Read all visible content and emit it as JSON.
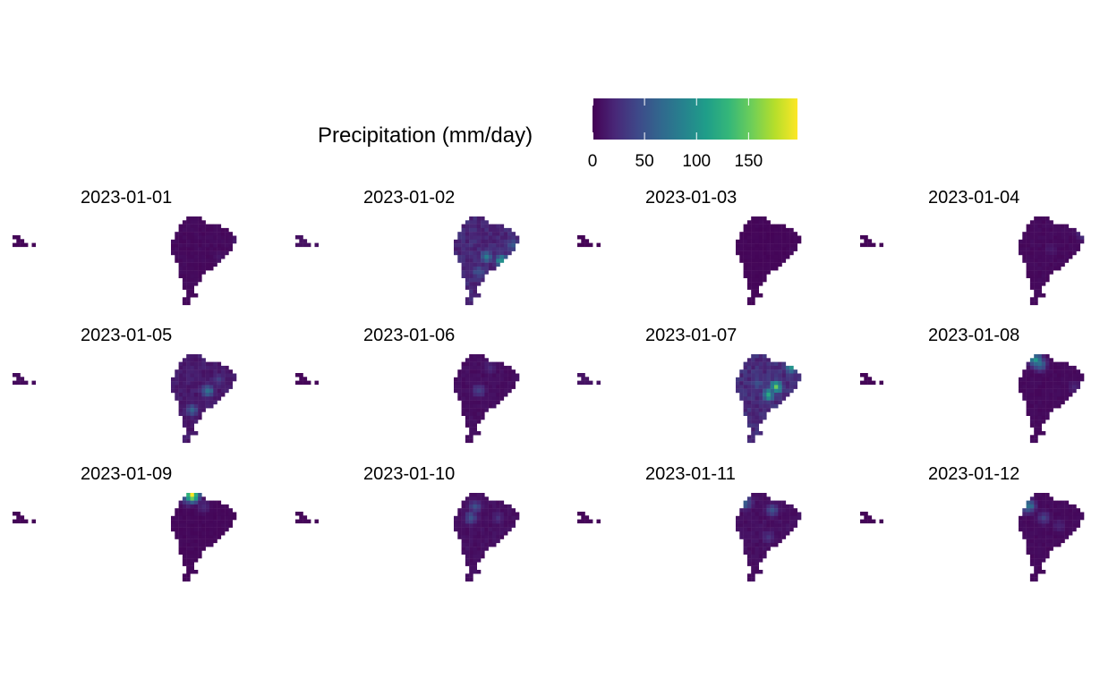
{
  "chart_data": {
    "type": "heatmap",
    "legend": {
      "title": "Precipitation (mm/day)",
      "ticks": [
        0,
        50,
        100,
        150
      ],
      "range": [
        0,
        197
      ],
      "palette": [
        "#440154",
        "#482878",
        "#3e4989",
        "#31688e",
        "#26828e",
        "#1f9e89",
        "#35b779",
        "#6ece58",
        "#b5de2b",
        "#fde725"
      ],
      "position": "top"
    },
    "facets": [
      {
        "label": "2023-01-01",
        "base": 5,
        "hotspots": [
          {
            "x": 17,
            "y": 6,
            "value": 18
          },
          {
            "x": 12,
            "y": 10,
            "value": 12
          }
        ]
      },
      {
        "label": "2023-01-02",
        "base": 22,
        "hotspots": [
          {
            "x": 8,
            "y": 10,
            "value": 80
          },
          {
            "x": 12,
            "y": 11,
            "value": 110
          },
          {
            "x": 15,
            "y": 7,
            "value": 60
          },
          {
            "x": 6,
            "y": 14,
            "value": 55
          }
        ]
      },
      {
        "label": "2023-01-03",
        "base": 3,
        "hotspots": [
          {
            "x": 14,
            "y": 8,
            "value": 6
          }
        ]
      },
      {
        "label": "2023-01-04",
        "base": 5,
        "hotspots": [
          {
            "x": 16,
            "y": 4,
            "value": 30
          },
          {
            "x": 8,
            "y": 8,
            "value": 15
          }
        ]
      },
      {
        "label": "2023-01-05",
        "base": 14,
        "hotspots": [
          {
            "x": 9,
            "y": 9,
            "value": 75
          },
          {
            "x": 5,
            "y": 14,
            "value": 55
          },
          {
            "x": 12,
            "y": 6,
            "value": 35
          }
        ]
      },
      {
        "label": "2023-01-06",
        "base": 7,
        "hotspots": [
          {
            "x": 6,
            "y": 9,
            "value": 40
          },
          {
            "x": 9,
            "y": 3,
            "value": 25
          }
        ]
      },
      {
        "label": "2023-01-07",
        "base": 25,
        "hotspots": [
          {
            "x": 10,
            "y": 8,
            "value": 135
          },
          {
            "x": 8,
            "y": 10,
            "value": 110
          },
          {
            "x": 14,
            "y": 3,
            "value": 90
          },
          {
            "x": 5,
            "y": 7,
            "value": 55
          }
        ]
      },
      {
        "label": "2023-01-08",
        "base": 5,
        "hotspots": [
          {
            "x": 4,
            "y": 1,
            "value": 95
          },
          {
            "x": 5,
            "y": 2,
            "value": 70
          },
          {
            "x": 14,
            "y": 8,
            "value": 20
          }
        ]
      },
      {
        "label": "2023-01-09",
        "base": 4,
        "hotspots": [
          {
            "x": 5,
            "y": 0,
            "value": 190
          },
          {
            "x": 4,
            "y": 1,
            "value": 60
          },
          {
            "x": 8,
            "y": 3,
            "value": 25
          }
        ]
      },
      {
        "label": "2023-01-10",
        "base": 8,
        "hotspots": [
          {
            "x": 4,
            "y": 6,
            "value": 50
          },
          {
            "x": 5,
            "y": 3,
            "value": 45
          },
          {
            "x": 11,
            "y": 6,
            "value": 25
          }
        ]
      },
      {
        "label": "2023-01-11",
        "base": 8,
        "hotspots": [
          {
            "x": 2,
            "y": 2,
            "value": 60
          },
          {
            "x": 9,
            "y": 4,
            "value": 45
          },
          {
            "x": 8,
            "y": 11,
            "value": 30
          }
        ]
      },
      {
        "label": "2023-01-12",
        "base": 5,
        "hotspots": [
          {
            "x": 2,
            "y": 3,
            "value": 80
          },
          {
            "x": 6,
            "y": 6,
            "value": 35
          },
          {
            "x": 10,
            "y": 8,
            "value": 20
          }
        ]
      }
    ]
  }
}
